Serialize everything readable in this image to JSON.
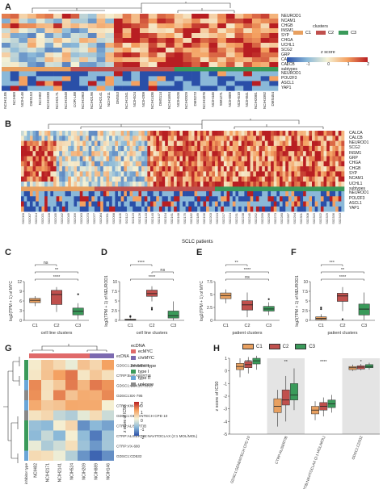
{
  "panel_labels": {
    "a": "A",
    "b": "B",
    "c": "C",
    "d": "D",
    "e": "E",
    "f": "F",
    "g": "G",
    "h": "H"
  },
  "panel_a": {
    "genes": [
      "NEUROD1",
      "NCAM1",
      "CHGB",
      "INSM1",
      "SYP",
      "CHGA",
      "UCHL1",
      "SCG2",
      "GRP",
      "CALCA",
      "CALCB",
      "subtypes",
      "NEUROD1",
      "POU2F3",
      "ASCL1",
      "YAP1"
    ],
    "samples": [
      "NCIH1105",
      "NCIH69",
      "NCIH146",
      "DMS153",
      "NCIH82",
      "NCIH1930",
      "NCIH2171",
      "NCIH1048",
      "COR-L88",
      "NCIH1963",
      "NCIH2196",
      "NCIH2141",
      "NCIH211",
      "DMS53",
      "NCIH1341",
      "NCIH524",
      "NCIH209",
      "NCIH1436",
      "DMS114",
      "NCIH1694",
      "NCIH526",
      "NCIH2029",
      "DMS273",
      "NCIH1876",
      "NCIH446",
      "SW1271",
      "NCIH889",
      "NCIH510",
      "NCIH841",
      "NCIH2081",
      "NCIH1092",
      "DMS454"
    ],
    "legend_clusters_title": "clusters",
    "clusters": [
      {
        "label": "C1",
        "color": "#e8a060"
      },
      {
        "label": "C2",
        "color": "#c0504d"
      },
      {
        "label": "C3",
        "color": "#3a9a5a"
      }
    ],
    "legend_zscore_title": "z score",
    "zscore_ticks": [
      "-2",
      "-1",
      "0",
      "1",
      "2"
    ]
  },
  "panel_b": {
    "genes": [
      "CALCA",
      "CALCB",
      "NEUROD1",
      "SCG2",
      "INSM1",
      "GRP",
      "CHGA",
      "CHGB",
      "SYP",
      "NCAM1",
      "UCHL1",
      "subtypes",
      "NEUROD1",
      "POU2F3",
      "ASCL1",
      "YAP1"
    ],
    "xlabel": "SCLC patients"
  },
  "panel_c": {
    "chart_data": {
      "type": "box",
      "categories": [
        "C1",
        "C2",
        "C3"
      ],
      "xlabel": "cell line clusters",
      "ylabel": "log2(TPM + 1) of MYC",
      "ylim": [
        0,
        12
      ],
      "yticks": [
        0,
        3,
        6,
        9,
        12
      ],
      "boxes": [
        {
          "q1": 5.5,
          "median": 6.2,
          "q3": 6.8,
          "min": 4.4,
          "max": 7.5,
          "outliers": []
        },
        {
          "q1": 4.9,
          "median": 8.0,
          "q3": 9.3,
          "min": 2.6,
          "max": 10.3,
          "outliers": []
        },
        {
          "q1": 1.7,
          "median": 2.8,
          "q3": 3.8,
          "min": 0.3,
          "max": 5.3,
          "outliers": [
            8.1
          ]
        }
      ],
      "significance": [
        {
          "from": "C1",
          "to": "C2",
          "label": "ns"
        },
        {
          "from": "C1",
          "to": "C3",
          "label": "**"
        },
        {
          "from": "C1",
          "to": "C3",
          "label": "****"
        }
      ]
    }
  },
  "panel_d": {
    "chart_data": {
      "type": "box",
      "categories": [
        "C1",
        "C2",
        "C3"
      ],
      "xlabel": "cell line clusters",
      "ylabel": "log2(TPM + 1) of NEUROD1",
      "ylim": [
        0,
        10
      ],
      "yticks": [
        0,
        2.5,
        5,
        7.5,
        10
      ],
      "boxes": [
        {
          "q1": 0.05,
          "median": 0.15,
          "q3": 0.3,
          "min": 0,
          "max": 0.5,
          "outliers": [
            0.9,
            1.1
          ]
        },
        {
          "q1": 6.2,
          "median": 6.9,
          "q3": 7.8,
          "min": 4.9,
          "max": 8.8,
          "outliers": [
            3.2,
            2.8
          ]
        },
        {
          "q1": 0.6,
          "median": 1.2,
          "q3": 2.4,
          "min": 0,
          "max": 4.9,
          "outliers": []
        }
      ],
      "significance": [
        {
          "from": "C1",
          "to": "C2",
          "label": "****"
        },
        {
          "from": "C2",
          "to": "C3",
          "label": "ns"
        },
        {
          "from": "C1",
          "to": "C3",
          "label": "****"
        }
      ]
    }
  },
  "panel_e": {
    "chart_data": {
      "type": "box",
      "categories": [
        "C1",
        "C2",
        "C3"
      ],
      "xlabel": "patient clusters",
      "ylabel": "log2(TPM + 1) of MYC",
      "ylim": [
        0,
        7.5
      ],
      "yticks": [
        0,
        2.5,
        5,
        7.5
      ],
      "boxes": [
        {
          "q1": 4.2,
          "median": 4.8,
          "q3": 5.3,
          "min": 3.3,
          "max": 6.0,
          "outliers": []
        },
        {
          "q1": 2.0,
          "median": 3.0,
          "q3": 3.8,
          "min": 0.6,
          "max": 5.4,
          "outliers": []
        },
        {
          "q1": 1.8,
          "median": 2.2,
          "q3": 2.7,
          "min": 1.0,
          "max": 3.5,
          "outliers": [
            4.1
          ]
        }
      ],
      "significance": [
        {
          "from": "C1",
          "to": "C2",
          "label": "**"
        },
        {
          "from": "C1",
          "to": "C3",
          "label": "****"
        },
        {
          "from": "C1",
          "to": "C3",
          "label": "ns"
        }
      ]
    }
  },
  "panel_f": {
    "chart_data": {
      "type": "box",
      "categories": [
        "C1",
        "C2",
        "C3"
      ],
      "xlabel": "patient clusters",
      "ylabel": "log2(TPM + 1) of NEUROD1",
      "ylim": [
        0,
        10
      ],
      "yticks": [
        0,
        2.5,
        5,
        7.5,
        10
      ],
      "boxes": [
        {
          "q1": 0.2,
          "median": 0.5,
          "q3": 0.9,
          "min": 0,
          "max": 1.6,
          "outliers": [
            2.9,
            3.3
          ]
        },
        {
          "q1": 4.9,
          "median": 6.3,
          "q3": 7.0,
          "min": 2.4,
          "max": 8.6,
          "outliers": [
            0.3
          ]
        },
        {
          "q1": 1.4,
          "median": 2.9,
          "q3": 4.2,
          "min": 0.1,
          "max": 7.2,
          "outliers": []
        }
      ],
      "significance": [
        {
          "from": "C1",
          "to": "C2",
          "label": "***"
        },
        {
          "from": "C1",
          "to": "C3",
          "label": "**"
        },
        {
          "from": "C1",
          "to": "C3",
          "label": "****"
        }
      ]
    }
  },
  "panel_g": {
    "drugs": [
      "GDSC1:ZM-447439",
      "CTRP:BARASERTIB",
      "GDSC1:GSK1070916",
      "GDSC1:BX-795",
      "CTRP:KW-2449",
      "GDSC1:GENENTECH CPD 10",
      "CTRP:ALISERTIB",
      "CTRP:ALISERTIB:NAVITOCLAX (2:1 MOL/MOL)",
      "CTRP:VX-680",
      "GDSC1:CD532"
    ],
    "cell_lines": [
      "NCIH82",
      "NCIH2171",
      "NCIH2141",
      "NCIH524",
      "NCIH209",
      "NCIH889",
      "NCIH146"
    ],
    "row_annotation_label": "inhibitor type",
    "ecdna_label": "ecDNA",
    "legend": {
      "ecdna_title": "ecDNA",
      "ecdna_items": [
        {
          "label": "ecMYC",
          "color": "#e06a6a"
        },
        {
          "label": "chrMYC",
          "color": "#7c6ab0"
        }
      ],
      "inhib_title": "inhibitor type",
      "inhib_items": [
        {
          "label": "type I",
          "color": "#3a9a5a"
        },
        {
          "label": "type II",
          "color": "#6aa6d8"
        },
        {
          "label": "unknow",
          "color": "#888888"
        }
      ],
      "zscore_title": "z score of IC50",
      "zscore_ticks": [
        "2",
        "1",
        "0",
        "-1",
        "-2"
      ]
    }
  },
  "panel_h": {
    "chart_data": {
      "type": "box",
      "series_names": [
        "C1",
        "C2",
        "C3"
      ],
      "colors": [
        "#e8a060",
        "#c0504d",
        "#3a9a5a"
      ],
      "ylabel": "z score of IC50",
      "ylim": [
        -5,
        1
      ],
      "yticks": [
        1,
        0,
        -1,
        -2,
        -3,
        -4,
        -5
      ],
      "groups": [
        {
          "name": "GDSC1:GENENTECH CPD 10",
          "sig": "****",
          "boxes": [
            {
              "q1": 0.1,
              "median": 0.35,
              "q3": 0.6,
              "min": -0.5,
              "max": 1.0
            },
            {
              "q1": 0.25,
              "median": 0.5,
              "q3": 0.75,
              "min": -0.2,
              "max": 1.1
            },
            {
              "q1": 0.55,
              "median": 0.8,
              "q3": 1.0,
              "min": 0.1,
              "max": 1.2
            }
          ]
        },
        {
          "name": "CTRP:ALISERTIB",
          "sig": "**",
          "boxes": [
            {
              "q1": -3.3,
              "median": -2.8,
              "q3": -2.2,
              "min": -4.4,
              "max": -1.5
            },
            {
              "q1": -2.7,
              "median": -2.3,
              "q3": -1.5,
              "min": -4.0,
              "max": -0.4
            },
            {
              "q1": -2.3,
              "median": -1.9,
              "q3": -1.0,
              "min": -3.1,
              "max": 0.2
            }
          ]
        },
        {
          "name": "CTRP:ALISERTIB:NAVITOCLAX (2:1 MOL/MOL)",
          "sig": "****",
          "boxes": [
            {
              "q1": -3.4,
              "median": -3.1,
              "q3": -2.8,
              "min": -3.9,
              "max": -2.4
            },
            {
              "q1": -3.1,
              "median": -2.8,
              "q3": -2.5,
              "min": -3.6,
              "max": -2.1
            },
            {
              "q1": -2.9,
              "median": -2.6,
              "q3": -2.3,
              "min": -3.3,
              "max": -1.9
            }
          ]
        },
        {
          "name": "GDSC1:CD532",
          "sig": "*",
          "boxes": [
            {
              "q1": 0.1,
              "median": 0.25,
              "q3": 0.35,
              "min": 0.0,
              "max": 0.5
            },
            {
              "q1": 0.15,
              "median": 0.3,
              "q3": 0.4,
              "min": 0.05,
              "max": 0.55
            },
            {
              "q1": 0.25,
              "median": 0.35,
              "q3": 0.5,
              "min": 0.1,
              "max": 0.65
            }
          ]
        }
      ]
    }
  }
}
